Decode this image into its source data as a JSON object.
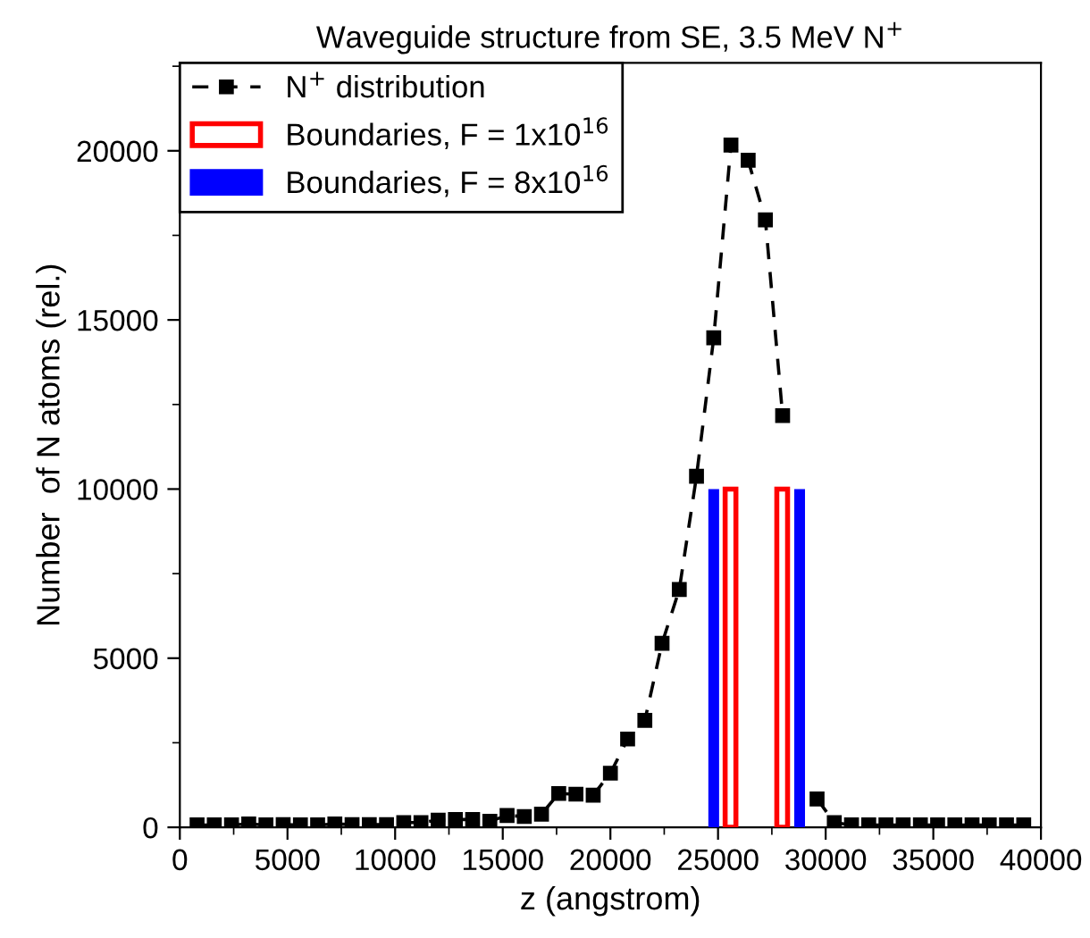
{
  "chart_data": {
    "type": "line",
    "title": "Waveguide structure from SE, 3.5 MeV N$^{+}$",
    "xlabel": "z (angstrom)",
    "ylabel": "Number  of N atoms (rel.)",
    "xlim": [
      0,
      40000
    ],
    "ylim": [
      0,
      22600
    ],
    "xticks": [
      0,
      5000,
      10000,
      15000,
      20000,
      25000,
      30000,
      35000,
      40000
    ],
    "yticks": [
      0,
      5000,
      10000,
      15000,
      20000
    ],
    "grid": false,
    "legend": "top left",
    "series": [
      {
        "name": "N$^{+}$ distribution",
        "color": "#000000",
        "marker": "square",
        "line_style": "dashed",
        "x": [
          800,
          1600,
          2400,
          3200,
          4000,
          4800,
          5600,
          6400,
          7200,
          8000,
          8800,
          9600,
          10400,
          11200,
          12000,
          12800,
          13600,
          14400,
          15200,
          16000,
          16800,
          17600,
          18400,
          19200,
          20000,
          20800,
          21600,
          22400,
          23200,
          24000,
          24800,
          25600,
          26400,
          27200,
          28000,
          28800,
          29600,
          30400,
          31200,
          32000,
          32800,
          33600,
          34400,
          35200,
          36000,
          36800,
          37600,
          38400,
          39200
        ],
        "values": [
          70,
          70,
          70,
          100,
          70,
          80,
          70,
          70,
          100,
          80,
          80,
          80,
          140,
          140,
          210,
          230,
          230,
          180,
          350,
          320,
          390,
          1000,
          980,
          950,
          1600,
          2610,
          3160,
          5440,
          7030,
          10380,
          14470,
          20170,
          19720,
          17960,
          12170,
          null,
          840,
          140,
          70,
          70,
          70,
          70,
          70,
          70,
          70,
          70,
          70,
          70,
          70
        ]
      },
      {
        "name": "Boundaries, F = 1x10$^{16}$",
        "type": "bar",
        "color": "#ff0000",
        "line_style": "solid",
        "x": [
          25580,
          27980
        ],
        "values": [
          10000,
          10000
        ]
      },
      {
        "name": "Boundaries, F = 8x10$^{16}$",
        "type": "bar",
        "color": "#0000ff",
        "x": [
          24800,
          28790
        ],
        "values": [
          10000,
          10000
        ]
      }
    ]
  }
}
